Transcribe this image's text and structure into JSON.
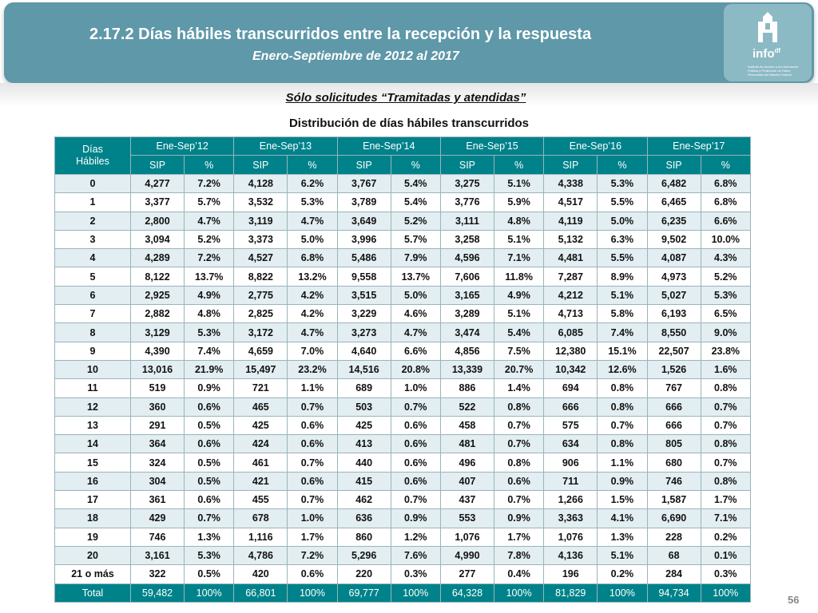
{
  "header": {
    "title": "2.17.2 Días hábiles transcurridos entre la recepción y la respuesta",
    "subtitle": "Enero-Septiembre de 2012 al 2017",
    "logo_text": "info",
    "logo_suffix": "df",
    "logo_fine_print": "Instituto de Acceso a la Información Pública y Protección de Datos Personales del Distrito Federal"
  },
  "note": "Sólo solicitudes “Tramitadas y atendidas”",
  "table_title": "Distribución de días hábiles transcurridos",
  "table": {
    "row_header_line1": "Días",
    "row_header_line2": "Hábiles",
    "periods": [
      "Ene-Sep’12",
      "Ene-Sep’13",
      "Ene-Sep’14",
      "Ene-Sep’15",
      "Ene-Sep’16",
      "Ene-Sep’17"
    ],
    "subheaders": [
      "SIP",
      "%",
      "SIP",
      "%",
      "SIP",
      "%",
      "SIP",
      "%",
      "SIP",
      "%",
      "SIP",
      "%"
    ],
    "rows": [
      [
        "0",
        "4,277",
        "7.2%",
        "4,128",
        "6.2%",
        "3,767",
        "5.4%",
        "3,275",
        "5.1%",
        "4,338",
        "5.3%",
        "6,482",
        "6.8%"
      ],
      [
        "1",
        "3,377",
        "5.7%",
        "3,532",
        "5.3%",
        "3,789",
        "5.4%",
        "3,776",
        "5.9%",
        "4,517",
        "5.5%",
        "6,465",
        "6.8%"
      ],
      [
        "2",
        "2,800",
        "4.7%",
        "3,119",
        "4.7%",
        "3,649",
        "5.2%",
        "3,111",
        "4.8%",
        "4,119",
        "5.0%",
        "6,235",
        "6.6%"
      ],
      [
        "3",
        "3,094",
        "5.2%",
        "3,373",
        "5.0%",
        "3,996",
        "5.7%",
        "3,258",
        "5.1%",
        "5,132",
        "6.3%",
        "9,502",
        "10.0%"
      ],
      [
        "4",
        "4,289",
        "7.2%",
        "4,527",
        "6.8%",
        "5,486",
        "7.9%",
        "4,596",
        "7.1%",
        "4,481",
        "5.5%",
        "4,087",
        "4.3%"
      ],
      [
        "5",
        "8,122",
        "13.7%",
        "8,822",
        "13.2%",
        "9,558",
        "13.7%",
        "7,606",
        "11.8%",
        "7,287",
        "8.9%",
        "4,973",
        "5.2%"
      ],
      [
        "6",
        "2,925",
        "4.9%",
        "2,775",
        "4.2%",
        "3,515",
        "5.0%",
        "3,165",
        "4.9%",
        "4,212",
        "5.1%",
        "5,027",
        "5.3%"
      ],
      [
        "7",
        "2,882",
        "4.8%",
        "2,825",
        "4.2%",
        "3,229",
        "4.6%",
        "3,289",
        "5.1%",
        "4,713",
        "5.8%",
        "6,193",
        "6.5%"
      ],
      [
        "8",
        "3,129",
        "5.3%",
        "3,172",
        "4.7%",
        "3,273",
        "4.7%",
        "3,474",
        "5.4%",
        "6,085",
        "7.4%",
        "8,550",
        "9.0%"
      ],
      [
        "9",
        "4,390",
        "7.4%",
        "4,659",
        "7.0%",
        "4,640",
        "6.6%",
        "4,856",
        "7.5%",
        "12,380",
        "15.1%",
        "22,507",
        "23.8%"
      ],
      [
        "10",
        "13,016",
        "21.9%",
        "15,497",
        "23.2%",
        "14,516",
        "20.8%",
        "13,339",
        "20.7%",
        "10,342",
        "12.6%",
        "1,526",
        "1.6%"
      ],
      [
        "11",
        "519",
        "0.9%",
        "721",
        "1.1%",
        "689",
        "1.0%",
        "886",
        "1.4%",
        "694",
        "0.8%",
        "767",
        "0.8%"
      ],
      [
        "12",
        "360",
        "0.6%",
        "465",
        "0.7%",
        "503",
        "0.7%",
        "522",
        "0.8%",
        "666",
        "0.8%",
        "666",
        "0.7%"
      ],
      [
        "13",
        "291",
        "0.5%",
        "425",
        "0.6%",
        "425",
        "0.6%",
        "458",
        "0.7%",
        "575",
        "0.7%",
        "666",
        "0.7%"
      ],
      [
        "14",
        "364",
        "0.6%",
        "424",
        "0.6%",
        "413",
        "0.6%",
        "481",
        "0.7%",
        "634",
        "0.8%",
        "805",
        "0.8%"
      ],
      [
        "15",
        "324",
        "0.5%",
        "461",
        "0.7%",
        "440",
        "0.6%",
        "496",
        "0.8%",
        "906",
        "1.1%",
        "680",
        "0.7%"
      ],
      [
        "16",
        "304",
        "0.5%",
        "421",
        "0.6%",
        "415",
        "0.6%",
        "407",
        "0.6%",
        "711",
        "0.9%",
        "746",
        "0.8%"
      ],
      [
        "17",
        "361",
        "0.6%",
        "455",
        "0.7%",
        "462",
        "0.7%",
        "437",
        "0.7%",
        "1,266",
        "1.5%",
        "1,587",
        "1.7%"
      ],
      [
        "18",
        "429",
        "0.7%",
        "678",
        "1.0%",
        "636",
        "0.9%",
        "553",
        "0.9%",
        "3,363",
        "4.1%",
        "6,690",
        "7.1%"
      ],
      [
        "19",
        "746",
        "1.3%",
        "1,116",
        "1.7%",
        "860",
        "1.2%",
        "1,076",
        "1.7%",
        "1,076",
        "1.3%",
        "228",
        "0.2%"
      ],
      [
        "20",
        "3,161",
        "5.3%",
        "4,786",
        "7.2%",
        "5,296",
        "7.6%",
        "4,990",
        "7.8%",
        "4,136",
        "5.1%",
        "68",
        "0.1%"
      ],
      [
        "21 o más",
        "322",
        "0.5%",
        "420",
        "0.6%",
        "220",
        "0.3%",
        "277",
        "0.4%",
        "196",
        "0.2%",
        "284",
        "0.3%"
      ]
    ],
    "total": [
      "Total",
      "59,482",
      "100%",
      "66,801",
      "100%",
      "69,777",
      "100%",
      "64,328",
      "100%",
      "81,829",
      "100%",
      "94,734",
      "100%"
    ]
  },
  "page_number": "56"
}
